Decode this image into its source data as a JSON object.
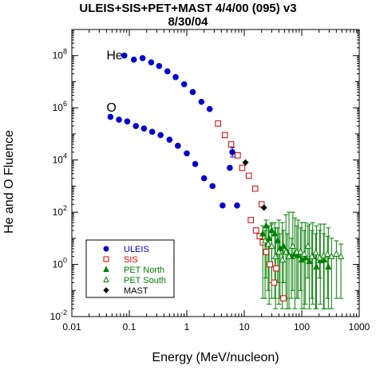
{
  "chart_data": {
    "type": "scatter",
    "title": "ULEIS+SIS+PET+MAST 4/4/00 (095) v3",
    "subtitle": "8/30/04",
    "xlabel": "Energy (MeV/nucleon)",
    "ylabel": "He and O Fluence",
    "xscale": "log",
    "yscale": "log",
    "xlim": [
      0.01,
      1000
    ],
    "ylim": [
      0.01,
      1000000000
    ],
    "x_ticks": [
      "0.01",
      "0.1",
      "1",
      "10",
      "100",
      "1000"
    ],
    "y_ticks": [
      {
        "base": "10",
        "exp": "-2"
      },
      {
        "base": "10",
        "exp": "0"
      },
      {
        "base": "10",
        "exp": "2"
      },
      {
        "base": "10",
        "exp": "4"
      },
      {
        "base": "10",
        "exp": "6"
      },
      {
        "base": "10",
        "exp": "8"
      }
    ],
    "grid": false,
    "legend_position": "bottom-left",
    "annotations": [
      {
        "text": "He",
        "x": 0.04,
        "y": 100000000
      },
      {
        "text": "O",
        "x": 0.04,
        "y": 1000000
      }
    ],
    "series": [
      {
        "name": "ULEIS",
        "marker": "filled-circle",
        "color": "#0000cc",
        "points": [
          [
            0.082,
            100000000
          ],
          [
            0.12,
            70000000
          ],
          [
            0.17,
            80000000
          ],
          [
            0.24,
            55000000
          ],
          [
            0.33,
            40000000
          ],
          [
            0.46,
            25000000
          ],
          [
            0.64,
            15000000
          ],
          [
            0.9,
            8000000
          ],
          [
            1.27,
            4000000
          ],
          [
            1.8,
            1700000
          ],
          [
            2.5,
            900000
          ],
          [
            0.047,
            450000
          ],
          [
            0.066,
            350000
          ],
          [
            0.092,
            300000
          ],
          [
            0.13,
            200000
          ],
          [
            0.18,
            160000
          ],
          [
            0.25,
            120000
          ],
          [
            0.35,
            90000
          ],
          [
            0.5,
            60000
          ],
          [
            0.7,
            35000
          ],
          [
            1.0,
            18000
          ],
          [
            1.4,
            7000
          ],
          [
            2.0,
            2000
          ],
          [
            2.8,
            1000
          ],
          [
            4.2,
            180
          ],
          [
            5.6,
            5000
          ],
          [
            6.2,
            20000
          ],
          [
            7.5,
            180
          ]
        ],
        "error_bars": [
          [
            6.2,
            13000,
            30000
          ]
        ]
      },
      {
        "name": "SIS",
        "marker": "open-square",
        "color": "#cc0000",
        "points": [
          [
            3.5,
            250000
          ],
          [
            4.6,
            90000
          ],
          [
            5.9,
            40000
          ],
          [
            7.7,
            15000
          ],
          [
            9.2,
            5000
          ],
          [
            12.0,
            2500
          ],
          [
            15.5,
            800
          ],
          [
            20.0,
            200
          ],
          [
            13.0,
            50
          ],
          [
            16.0,
            20
          ],
          [
            18.5,
            12
          ],
          [
            21.0,
            7
          ],
          [
            24.0,
            3
          ],
          [
            28.0,
            1
          ],
          [
            33.0,
            0.2
          ],
          [
            48.0,
            0.05
          ],
          [
            36.0,
            0.7
          ]
        ]
      },
      {
        "name": "PET North",
        "marker": "filled-triangle",
        "color": "#008000",
        "points": [
          [
            21,
            15
          ],
          [
            24,
            30
          ],
          [
            27,
            10
          ],
          [
            30,
            20
          ],
          [
            34,
            15
          ],
          [
            38,
            8
          ],
          [
            42,
            4
          ],
          [
            48,
            5
          ],
          [
            56,
            3
          ],
          [
            66,
            2
          ],
          [
            76,
            2.5
          ],
          [
            86,
            2.2
          ],
          [
            100,
            1.5
          ],
          [
            115,
            1.8
          ],
          [
            135,
            1.3
          ],
          [
            155,
            2
          ],
          [
            180,
            0.8
          ],
          [
            210,
            1.4
          ],
          [
            245,
            1.5
          ],
          [
            290,
            0.8
          ]
        ],
        "error_bars": [
          [
            21,
            0.05,
            30
          ],
          [
            24,
            0.3,
            50
          ],
          [
            27,
            0.03,
            30
          ],
          [
            30,
            0.2,
            40
          ],
          [
            34,
            0.05,
            40
          ],
          [
            38,
            0.2,
            25
          ],
          [
            42,
            0.05,
            15
          ],
          [
            48,
            0.2,
            20
          ],
          [
            56,
            0.02,
            15
          ],
          [
            66,
            0.05,
            10
          ],
          [
            76,
            0.02,
            60
          ],
          [
            86,
            0.05,
            50
          ],
          [
            100,
            0.02,
            40
          ],
          [
            115,
            0.03,
            40
          ],
          [
            135,
            0.02,
            35
          ],
          [
            155,
            0.03,
            40
          ],
          [
            180,
            0.02,
            30
          ],
          [
            210,
            0.03,
            35
          ],
          [
            245,
            0.02,
            35
          ],
          [
            290,
            0.02,
            25
          ]
        ]
      },
      {
        "name": "PET South",
        "marker": "open-triangle",
        "color": "#008000",
        "points": [
          [
            23,
            8
          ],
          [
            26,
            6
          ],
          [
            30,
            5
          ],
          [
            35,
            2
          ],
          [
            40,
            3
          ],
          [
            46,
            1.5
          ],
          [
            53,
            3
          ],
          [
            60,
            2
          ],
          [
            70,
            5
          ],
          [
            82,
            3
          ],
          [
            95,
            3
          ],
          [
            110,
            2.5
          ],
          [
            128,
            5
          ],
          [
            150,
            2
          ],
          [
            175,
            2.8
          ],
          [
            205,
            1.8
          ],
          [
            240,
            2.2
          ],
          [
            280,
            2.5
          ],
          [
            330,
            2
          ],
          [
            400,
            2.5
          ],
          [
            480,
            2
          ]
        ],
        "error_bars": [
          [
            23,
            0.05,
            20
          ],
          [
            26,
            0.1,
            30
          ],
          [
            30,
            0.05,
            35
          ],
          [
            35,
            0.02,
            25
          ],
          [
            40,
            0.03,
            50
          ],
          [
            46,
            0.02,
            40
          ],
          [
            53,
            0.05,
            80
          ],
          [
            60,
            0.02,
            100
          ],
          [
            70,
            0.1,
            100
          ],
          [
            82,
            0.05,
            30
          ],
          [
            95,
            0.1,
            25
          ],
          [
            110,
            0.02,
            20
          ],
          [
            128,
            0.3,
            30
          ],
          [
            150,
            0.05,
            20
          ],
          [
            175,
            0.02,
            15
          ],
          [
            205,
            0.3,
            20
          ],
          [
            240,
            0.02,
            15
          ],
          [
            280,
            0.05,
            12
          ],
          [
            330,
            0.02,
            10
          ],
          [
            400,
            0.05,
            8
          ],
          [
            480,
            0.05,
            6
          ]
        ]
      },
      {
        "name": "MAST",
        "marker": "filled-diamond",
        "color": "#000000",
        "points": [
          [
            10.5,
            8000
          ],
          [
            22.0,
            150
          ]
        ]
      }
    ]
  }
}
